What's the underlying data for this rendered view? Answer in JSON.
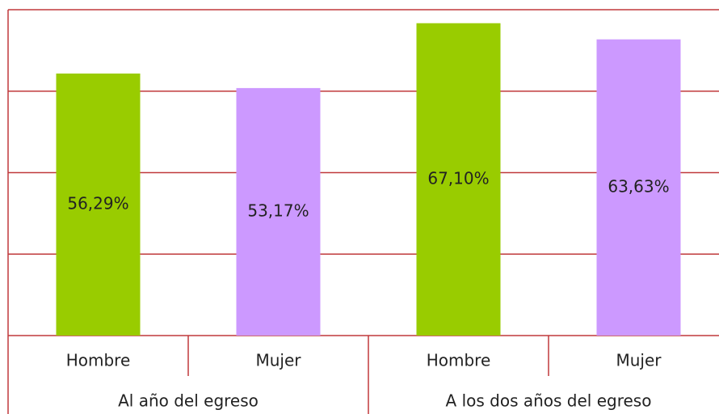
{
  "chart_data": {
    "type": "bar",
    "categories": [
      "Hombre",
      "Mujer",
      "Hombre",
      "Mujer"
    ],
    "groups": [
      "Al año del egreso",
      "A los dos años del egreso"
    ],
    "values": [
      56.29,
      53.17,
      67.1,
      63.63
    ],
    "value_labels": [
      "56,29%",
      "53,17%",
      "67,10%",
      "63,63%"
    ],
    "colors": [
      "#99cc00",
      "#cc99ff",
      "#99cc00",
      "#cc99ff"
    ],
    "ylim": [
      0,
      70
    ],
    "yticks": [
      0,
      17.5,
      35,
      52.5,
      70
    ],
    "grid": true
  }
}
